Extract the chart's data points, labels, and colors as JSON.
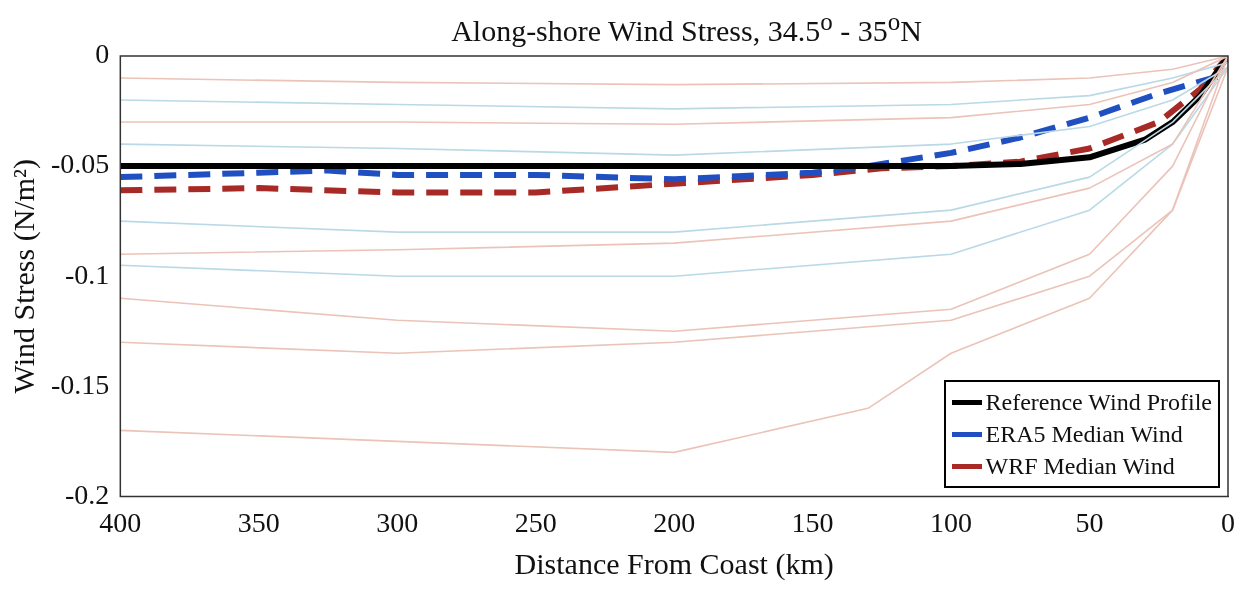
{
  "chart_data": {
    "type": "line",
    "title": "Along-shore Wind Stress, 34.5$^{o}$ - 35$^{o}$N",
    "xlabel": "Distance From Coast (km)",
    "ylabel": "Wind Stress (N/m²)",
    "xlim": [
      400,
      0
    ],
    "xticks": [
      400,
      350,
      300,
      250,
      200,
      150,
      100,
      50,
      0
    ],
    "ylim": [
      -0.2,
      0
    ],
    "yticks": [
      -0.2,
      -0.15,
      -0.1,
      -0.05,
      0
    ],
    "grid": false,
    "legend": "bottom right",
    "marker": "none",
    "series": [
      {
        "color": "#ebc3b8",
        "x": [
          400,
          300,
          200,
          100,
          50,
          20,
          0
        ],
        "values": [
          -0.01,
          -0.012,
          -0.013,
          -0.012,
          -0.01,
          -0.006,
          0
        ]
      },
      {
        "color": "#ebc3b8",
        "x": [
          400,
          300,
          200,
          100,
          50,
          20,
          0
        ],
        "values": [
          -0.03,
          -0.03,
          -0.031,
          -0.028,
          -0.022,
          -0.012,
          0
        ]
      },
      {
        "color": "#ebc3b8",
        "x": [
          400,
          300,
          200,
          100,
          50,
          20,
          0
        ],
        "values": [
          -0.09,
          -0.088,
          -0.085,
          -0.075,
          -0.06,
          -0.04,
          0
        ]
      },
      {
        "color": "#ebc3b8",
        "x": [
          400,
          300,
          200,
          100,
          50,
          20,
          0
        ],
        "values": [
          -0.13,
          -0.135,
          -0.13,
          -0.12,
          -0.1,
          -0.07,
          -0.005
        ]
      },
      {
        "color": "#ebc3b8",
        "x": [
          400,
          300,
          200,
          130,
          100,
          50,
          20,
          0
        ],
        "values": [
          -0.17,
          -0.175,
          -0.18,
          -0.16,
          -0.135,
          -0.11,
          -0.07,
          0
        ]
      },
      {
        "color": "#ebc3b8",
        "x": [
          400,
          300,
          200,
          100,
          50,
          20,
          0
        ],
        "values": [
          -0.11,
          -0.12,
          -0.125,
          -0.115,
          -0.09,
          -0.05,
          0
        ]
      },
      {
        "color": "#b9d9e6",
        "x": [
          400,
          300,
          200,
          100,
          50,
          20,
          0
        ],
        "values": [
          -0.02,
          -0.022,
          -0.024,
          -0.022,
          -0.018,
          -0.01,
          -0.003
        ]
      },
      {
        "color": "#b9d9e6",
        "x": [
          400,
          300,
          200,
          100,
          50,
          20,
          0
        ],
        "values": [
          -0.04,
          -0.042,
          -0.045,
          -0.04,
          -0.032,
          -0.02,
          -0.005
        ]
      },
      {
        "color": "#b9d9e6",
        "x": [
          400,
          300,
          200,
          100,
          50,
          20,
          0
        ],
        "values": [
          -0.075,
          -0.08,
          -0.08,
          -0.07,
          -0.055,
          -0.03,
          -0.005
        ]
      },
      {
        "color": "#b9d9e6",
        "x": [
          400,
          300,
          200,
          100,
          50,
          20,
          0
        ],
        "values": [
          -0.095,
          -0.1,
          -0.1,
          -0.09,
          -0.07,
          -0.04,
          -0.005
        ]
      },
      {
        "name": "Reference Wind Profile",
        "color": "#000000",
        "line_style": "solid",
        "x": [
          400,
          350,
          300,
          250,
          200,
          150,
          130,
          100,
          75,
          50,
          30,
          20,
          10,
          0
        ],
        "values": [
          -0.05,
          -0.05,
          -0.05,
          -0.05,
          -0.05,
          -0.05,
          -0.05,
          -0.05,
          -0.049,
          -0.046,
          -0.038,
          -0.03,
          -0.018,
          0
        ]
      },
      {
        "name": "ERA5 Median Wind",
        "color": "#1f4fc0",
        "line_style": "dashed",
        "x": [
          400,
          350,
          325,
          300,
          250,
          200,
          150,
          130,
          100,
          75,
          50,
          25,
          0
        ],
        "values": [
          -0.055,
          -0.053,
          -0.052,
          -0.054,
          -0.054,
          -0.056,
          -0.053,
          -0.05,
          -0.044,
          -0.037,
          -0.028,
          -0.017,
          -0.008
        ]
      },
      {
        "name": "WRF Median Wind",
        "color": "#a82a26",
        "line_style": "dashed",
        "x": [
          400,
          350,
          300,
          250,
          200,
          150,
          125,
          100,
          75,
          50,
          25,
          10,
          0
        ],
        "values": [
          -0.061,
          -0.06,
          -0.062,
          -0.062,
          -0.058,
          -0.054,
          -0.051,
          -0.05,
          -0.048,
          -0.042,
          -0.03,
          -0.015,
          0
        ]
      }
    ]
  }
}
